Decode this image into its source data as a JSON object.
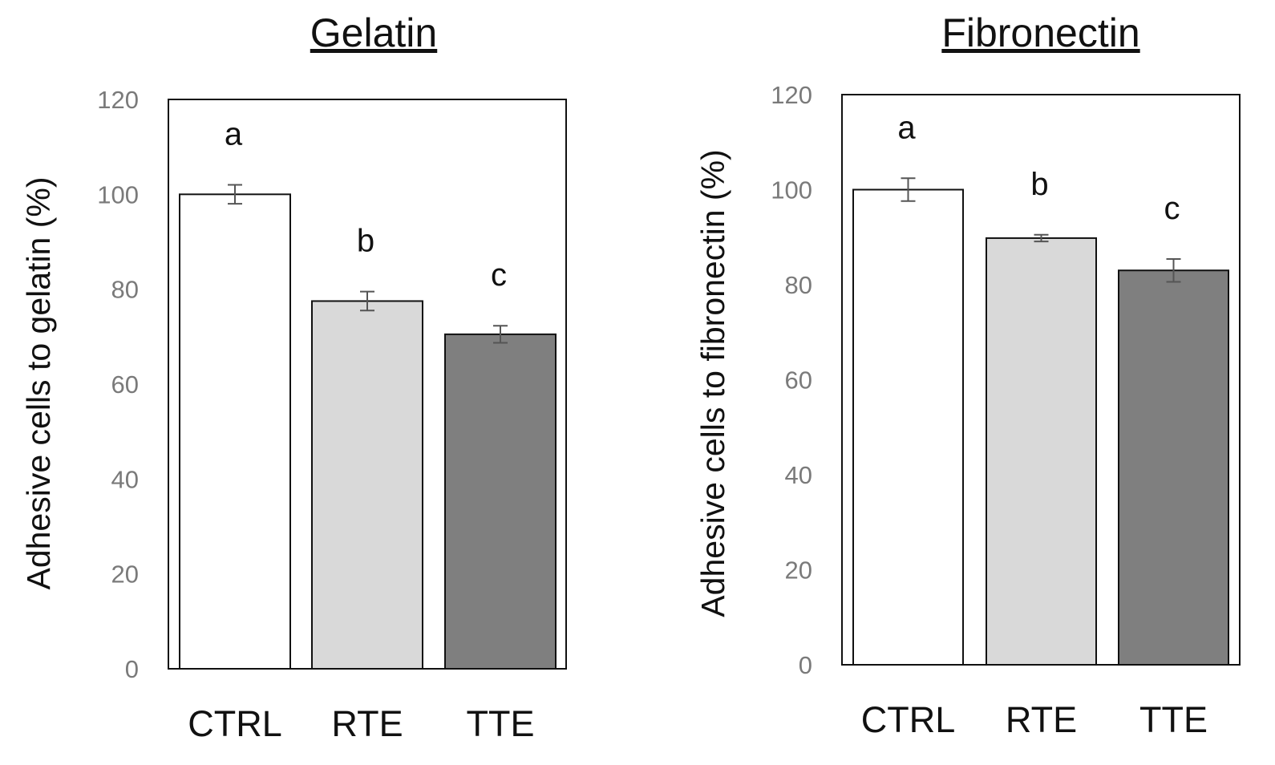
{
  "chart_data": [
    {
      "type": "bar",
      "title": "Gelatin",
      "xlabel": "",
      "ylabel": "Adhesive cells to gelatin (%)",
      "ylim": [
        0,
        120
      ],
      "yticks": [
        "0",
        "20",
        "40",
        "60",
        "80",
        "100",
        "120"
      ],
      "grid": false,
      "categories": [
        "CTRL",
        "RTE",
        "TTE"
      ],
      "values": [
        100,
        77.5,
        70.5
      ],
      "errors": [
        2,
        2,
        1.8
      ],
      "annotations": [
        "a",
        "b",
        "c"
      ],
      "colors": [
        "#ffffff",
        "#d9d9d9",
        "#7f7f7f"
      ]
    },
    {
      "type": "bar",
      "title": "Fibronectin",
      "xlabel": "",
      "ylabel": "Adhesive cells to fibronectin (%)",
      "ylim": [
        0,
        120
      ],
      "yticks": [
        "0",
        "20",
        "40",
        "60",
        "80",
        "100",
        "120"
      ],
      "grid": false,
      "categories": [
        "CTRL",
        "RTE",
        "TTE"
      ],
      "values": [
        100,
        89.8,
        83
      ],
      "errors": [
        2.4,
        0.7,
        2.4
      ],
      "annotations": [
        "a",
        "b",
        "c"
      ],
      "colors": [
        "#ffffff",
        "#d9d9d9",
        "#7f7f7f"
      ]
    }
  ]
}
